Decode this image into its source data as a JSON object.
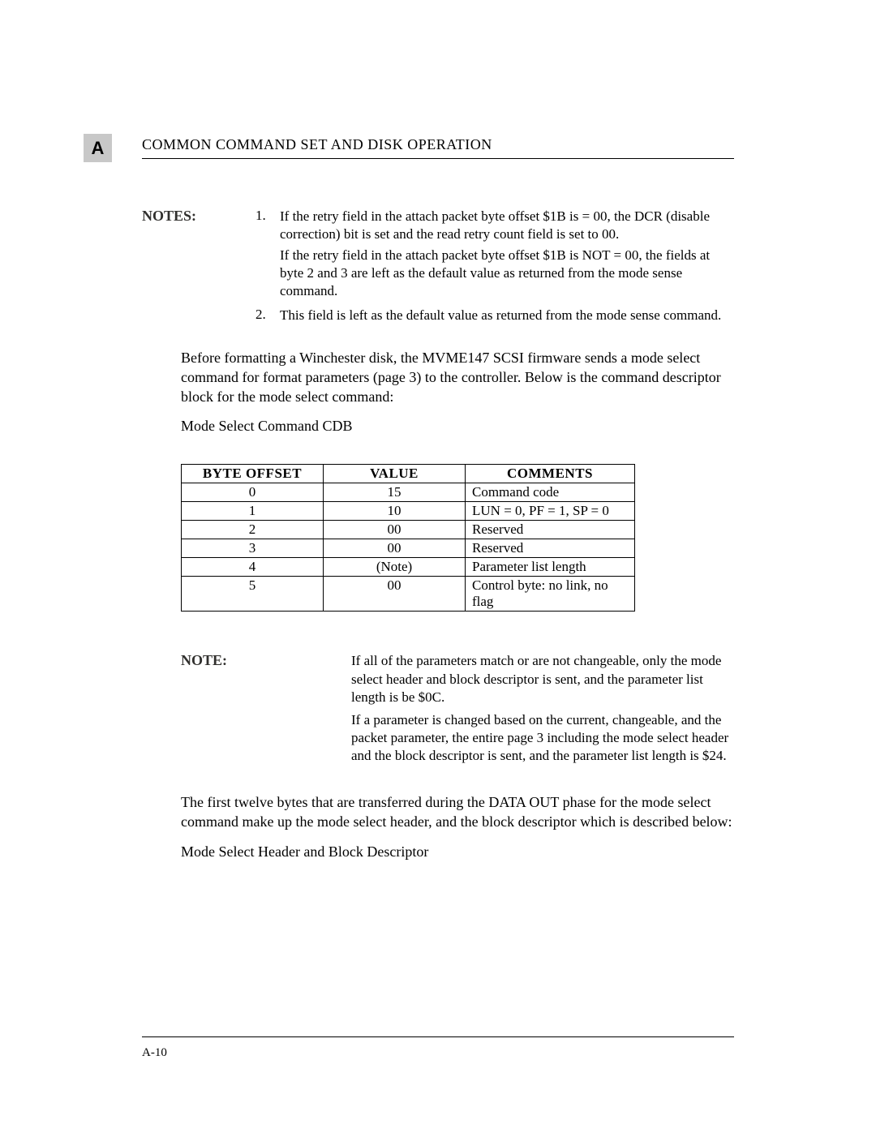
{
  "section_letter": "A",
  "header_title": "COMMON COMMAND SET AND DISK OPERATION",
  "notes_label": "NOTES:",
  "notes": [
    {
      "num": "1.",
      "paras": [
        "If the retry field in the attach packet byte offset $1B is = 00, the DCR (disable correction) bit is set and the read retry count field is set to 00.",
        "If the retry field in the attach packet byte offset $1B is NOT = 00, the fields at byte 2 and 3 are left as the default value as returned from the mode sense command."
      ]
    },
    {
      "num": "2.",
      "paras": [
        "This field  is left as the default value as returned from the mode sense command."
      ]
    }
  ],
  "intro_para": "Before formatting a Winchester disk, the MVME147 SCSI firmware sends a mode select command for format parameters (page 3) to the controller.  Below is the command descriptor block for the mode select command:",
  "cdb_title": "Mode Select Command CDB",
  "table": {
    "columns": [
      "BYTE OFFSET",
      "VALUE",
      "COMMENTS"
    ],
    "rows": [
      [
        "0",
        "15",
        "Command code"
      ],
      [
        "1",
        "10",
        "LUN = 0, PF = 1, SP = 0"
      ],
      [
        "2",
        "00",
        "Reserved"
      ],
      [
        "3",
        "00",
        "Reserved"
      ],
      [
        "4",
        "(Note)",
        "Parameter list length"
      ],
      [
        "5",
        "00",
        "Control byte: no link, no flag"
      ]
    ]
  },
  "note2_label": "NOTE:",
  "note2_paras": [
    "If all of the parameters match or are not changeable, only the mode select header and block descriptor is sent, and the parameter list length is be $0C.",
    "If a parameter is changed based on the current, changeable, and the packet parameter, the entire page 3 including the mode select header and the block descriptor is sent, and the parameter list length is $24."
  ],
  "body_para_2": "The first twelve bytes that are transferred during the DATA OUT phase for the mode select command make up the mode select header, and the block descriptor which is described below:",
  "subhead_2": "Mode Select Header and Block Descriptor",
  "footer": "A-10"
}
